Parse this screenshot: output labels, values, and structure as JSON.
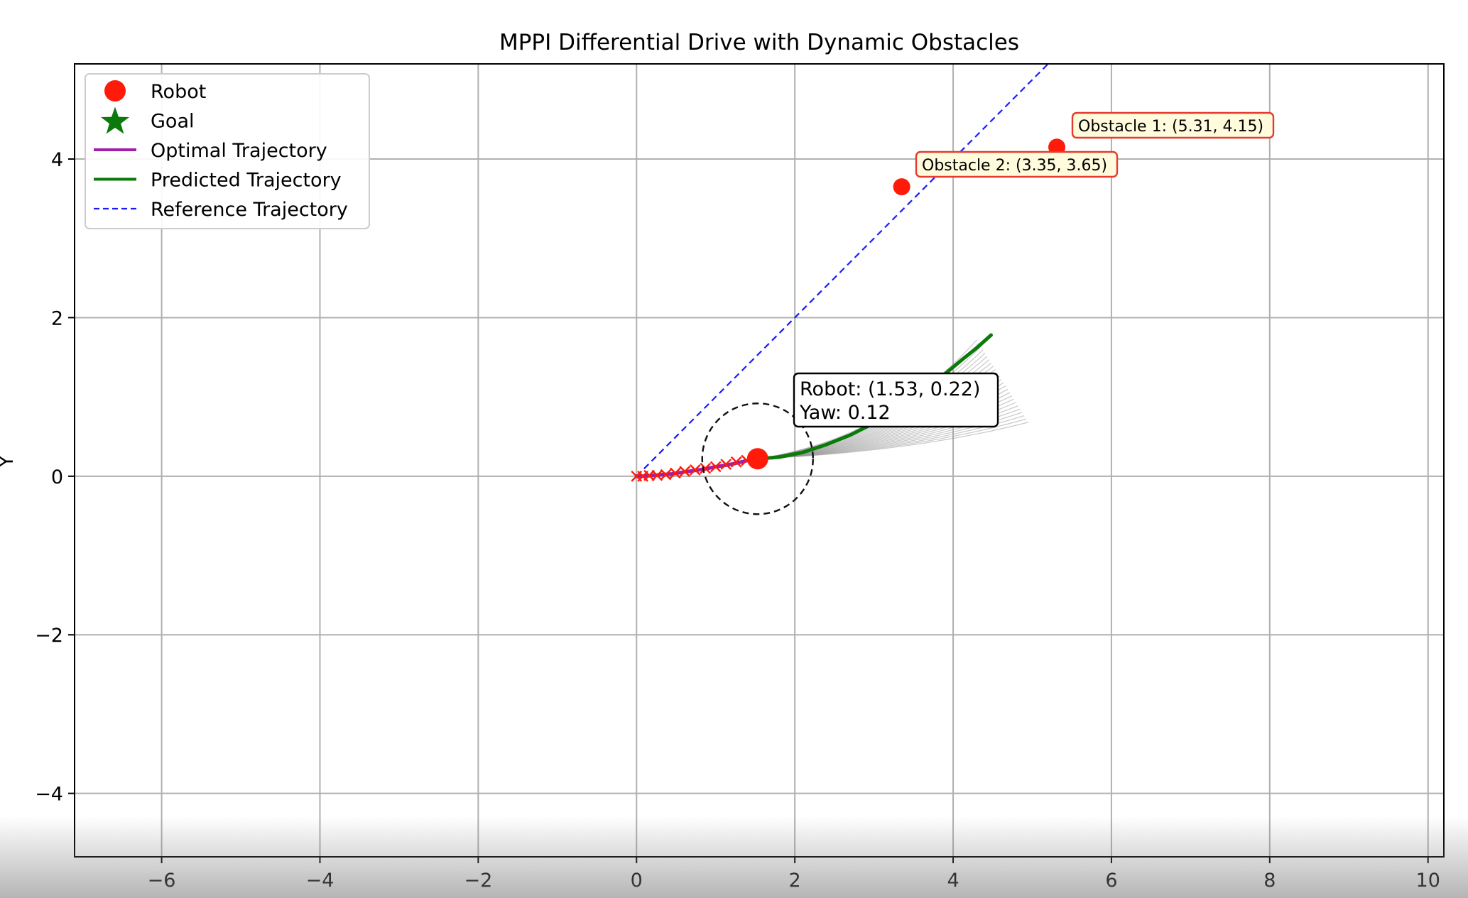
{
  "chart_data": {
    "type": "scatter",
    "title": "MPPI Differential Drive with Dynamic Obstacles",
    "xlabel": "",
    "ylabel": "Y",
    "xlim": [
      -7.1,
      10.2
    ],
    "ylim": [
      -4.8,
      5.2
    ],
    "xticks": [
      -6,
      -4,
      -2,
      0,
      2,
      4,
      6,
      8,
      10
    ],
    "yticks": [
      -4,
      -2,
      0,
      2,
      4
    ],
    "xtick_labels": [
      "−6",
      "−4",
      "−2",
      "0",
      "2",
      "4",
      "6",
      "8",
      "10"
    ],
    "ytick_labels": [
      "−4",
      "−2",
      "0",
      "2",
      "4"
    ],
    "grid": true,
    "legend": {
      "position": "upper-left",
      "entries": [
        {
          "label": "Robot",
          "marker": "circle",
          "color": "#ff1a0a"
        },
        {
          "label": "Goal",
          "marker": "star",
          "color": "#0b7a0b"
        },
        {
          "label": "Optimal Trajectory",
          "marker": "line",
          "color": "#a01ea8"
        },
        {
          "label": "Predicted Trajectory",
          "marker": "line",
          "color": "#0b7a0b"
        },
        {
          "label": "Reference Trajectory",
          "marker": "dashed",
          "color": "#1a1aff"
        }
      ]
    },
    "robot": {
      "x": 1.53,
      "y": 0.22,
      "yaw": 0.12,
      "safety_radius": 0.7,
      "color": "#ff1a0a"
    },
    "robot_label": [
      "Robot: (1.53, 0.22)",
      "Yaw: 0.12"
    ],
    "obstacles": [
      {
        "name": "Obstacle 1",
        "x": 5.31,
        "y": 4.15,
        "label": "Obstacle 1: (5.31, 4.15)",
        "color": "#ff1a0a"
      },
      {
        "name": "Obstacle 2",
        "x": 3.35,
        "y": 3.65,
        "label": "Obstacle 2: (3.35, 3.65)",
        "color": "#ff1a0a"
      }
    ],
    "reference_trajectory": {
      "x": [
        0.0,
        5.2
      ],
      "y": [
        0.0,
        5.2
      ],
      "color": "#1a1aff"
    },
    "optimal_trajectory": {
      "x": [
        0.0,
        0.1,
        0.2,
        0.32,
        0.45,
        0.58,
        0.72,
        0.86,
        1.0,
        1.14,
        1.28,
        1.41,
        1.53
      ],
      "y": [
        0.0,
        0.0,
        0.01,
        0.02,
        0.03,
        0.05,
        0.07,
        0.09,
        0.12,
        0.14,
        0.17,
        0.2,
        0.22
      ],
      "color": "#a01ea8"
    },
    "past_positions": {
      "x": [
        0.0,
        0.08,
        0.16,
        0.26,
        0.37,
        0.49,
        0.61,
        0.74,
        0.87,
        1.0,
        1.13,
        1.26,
        1.39
      ],
      "y": [
        0.0,
        0.0,
        0.01,
        0.01,
        0.02,
        0.04,
        0.06,
        0.08,
        0.1,
        0.12,
        0.15,
        0.18,
        0.2
      ],
      "color": "#ff1a0a"
    },
    "predicted_trajectory": {
      "x": [
        1.53,
        1.8,
        2.1,
        2.4,
        2.7,
        3.0,
        3.3,
        3.6,
        3.85,
        4.1,
        4.3,
        4.48
      ],
      "y": [
        0.22,
        0.24,
        0.3,
        0.4,
        0.52,
        0.67,
        0.84,
        1.04,
        1.25,
        1.46,
        1.62,
        1.78
      ],
      "color": "#0b7a0b"
    },
    "sampled_rollouts": {
      "count": 26,
      "start": [
        1.53,
        0.22
      ],
      "end_x_range": [
        4.3,
        4.95
      ],
      "end_y_range": [
        0.68,
        1.72
      ],
      "color": "#888888"
    }
  }
}
